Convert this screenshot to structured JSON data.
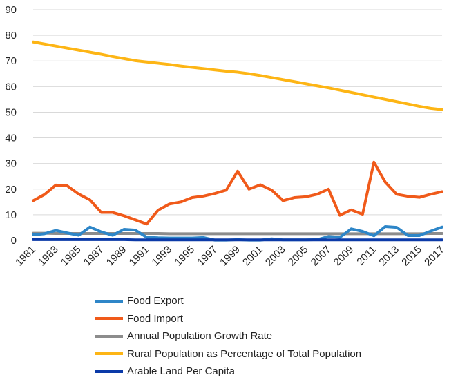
{
  "chart_data": {
    "type": "line",
    "title": "",
    "xlabel": "",
    "ylabel": "",
    "ylim": [
      0,
      90
    ],
    "yticks": [
      0,
      10,
      20,
      30,
      40,
      50,
      60,
      70,
      80,
      90
    ],
    "x": [
      1981,
      1982,
      1983,
      1984,
      1985,
      1986,
      1987,
      1988,
      1989,
      1990,
      1991,
      1992,
      1993,
      1994,
      1995,
      1996,
      1997,
      1998,
      1999,
      2000,
      2001,
      2002,
      2003,
      2004,
      2005,
      2006,
      2007,
      2008,
      2009,
      2010,
      2011,
      2012,
      2013,
      2014,
      2015,
      2016,
      2017
    ],
    "xtick_labels": [
      "1981",
      "1983",
      "1985",
      "1987",
      "1989",
      "1991",
      "1993",
      "1995",
      "1997",
      "1999",
      "2001",
      "2003",
      "2005",
      "2007",
      "2009",
      "2011",
      "2013",
      "2015",
      "2017"
    ],
    "grid": true,
    "legend_position": "bottom",
    "series": [
      {
        "name": "Food Export",
        "color": "#2E86C8",
        "values": [
          2.2,
          2.6,
          3.9,
          2.9,
          2.0,
          5.2,
          3.3,
          2.0,
          4.3,
          4.0,
          1.2,
          1.0,
          0.9,
          0.9,
          0.9,
          1.1,
          0.1,
          0.1,
          0.3,
          0.1,
          0.1,
          0.6,
          0.2,
          0.2,
          0.2,
          0.3,
          1.5,
          1.2,
          4.5,
          3.5,
          1.8,
          5.4,
          5.1,
          1.9,
          1.9,
          3.6,
          5.2
        ]
      },
      {
        "name": "Food Import",
        "color": "#F05A1A",
        "values": [
          15.5,
          17.9,
          21.6,
          21.3,
          18.1,
          15.8,
          10.9,
          10.9,
          9.6,
          8.0,
          6.4,
          11.8,
          14.2,
          15.0,
          16.7,
          17.3,
          18.3,
          19.6,
          27.0,
          20.0,
          21.7,
          19.6,
          15.5,
          16.7,
          17.0,
          18.0,
          20.0,
          9.8,
          11.9,
          10.2,
          30.5,
          22.7,
          18.0,
          17.2,
          16.8,
          18.0,
          19.0
        ]
      },
      {
        "name": "Annual Population Growth Rate",
        "color": "#8C8C8C",
        "values": [
          2.8,
          2.8,
          2.7,
          2.7,
          2.7,
          2.7,
          2.7,
          2.7,
          2.7,
          2.7,
          2.7,
          2.7,
          2.6,
          2.6,
          2.6,
          2.6,
          2.6,
          2.6,
          2.6,
          2.6,
          2.6,
          2.6,
          2.6,
          2.6,
          2.6,
          2.6,
          2.6,
          2.6,
          2.6,
          2.6,
          2.6,
          2.6,
          2.6,
          2.6,
          2.6,
          2.7,
          2.7
        ]
      },
      {
        "name": "Rural Population as Percentage of Total Population",
        "color": "#FDB515",
        "values": [
          77.4,
          76.6,
          75.8,
          75.0,
          74.2,
          73.4,
          72.6,
          71.7,
          70.9,
          70.1,
          69.6,
          69.1,
          68.6,
          68.0,
          67.5,
          67.0,
          66.5,
          66.0,
          65.6,
          65.0,
          64.3,
          63.5,
          62.7,
          61.9,
          61.1,
          60.3,
          59.5,
          58.6,
          57.7,
          56.8,
          55.9,
          55.0,
          54.1,
          53.2,
          52.3,
          51.5,
          51.0
        ]
      },
      {
        "name": "Arable Land Per Capita",
        "color": "#0B3AA8",
        "values": [
          0.3,
          0.3,
          0.3,
          0.3,
          0.3,
          0.3,
          0.3,
          0.3,
          0.3,
          0.2,
          0.2,
          0.2,
          0.2,
          0.2,
          0.2,
          0.2,
          0.2,
          0.2,
          0.2,
          0.2,
          0.2,
          0.2,
          0.2,
          0.2,
          0.2,
          0.2,
          0.2,
          0.2,
          0.2,
          0.2,
          0.2,
          0.2,
          0.2,
          0.2,
          0.2,
          0.2,
          0.2
        ]
      }
    ]
  }
}
